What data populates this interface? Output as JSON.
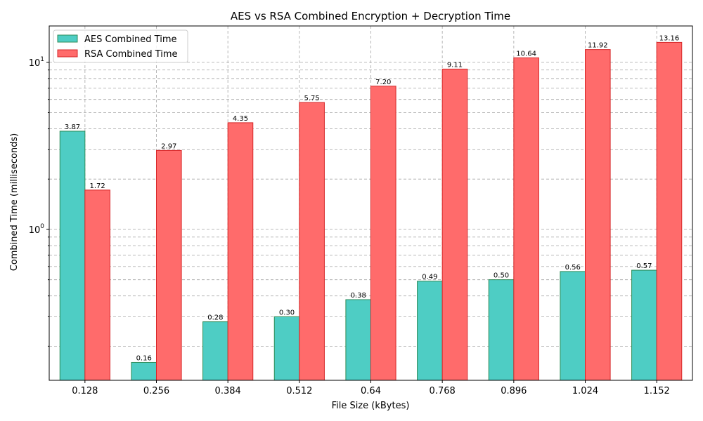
{
  "chart_data": {
    "type": "bar",
    "title": "AES vs RSA Combined Encryption + Decryption Time",
    "xlabel": "File Size (kBytes)",
    "ylabel": "Combined Time (milliseconds)",
    "yscale": "log",
    "ylim": [
      0.125,
      16.5
    ],
    "grid": true,
    "legend_placement": "top-left",
    "categories": [
      "0.128",
      "0.256",
      "0.384",
      "0.512",
      "0.64",
      "0.768",
      "0.896",
      "1.024",
      "1.152"
    ],
    "series": [
      {
        "name": "AES Combined Time",
        "color": "#4ecdc4",
        "edge_color": "#2e8b57",
        "values": [
          3.87,
          0.16,
          0.28,
          0.3,
          0.38,
          0.49,
          0.5,
          0.56,
          0.57
        ],
        "labels": [
          "3.87",
          "0.16",
          "0.28",
          "0.30",
          "0.38",
          "0.49",
          "0.50",
          "0.56",
          "0.57"
        ]
      },
      {
        "name": "RSA Combined Time",
        "color": "#ff6b6b",
        "edge_color": "#d62728",
        "values": [
          1.72,
          2.97,
          4.35,
          5.75,
          7.2,
          9.11,
          10.64,
          11.92,
          13.16
        ],
        "labels": [
          "1.72",
          "2.97",
          "4.35",
          "5.75",
          "7.20",
          "9.11",
          "10.64",
          "11.92",
          "13.16"
        ]
      }
    ],
    "y_ticks": [
      {
        "value": 1,
        "base": "10",
        "exp": "0"
      },
      {
        "value": 10,
        "base": "10",
        "exp": "1"
      }
    ]
  }
}
